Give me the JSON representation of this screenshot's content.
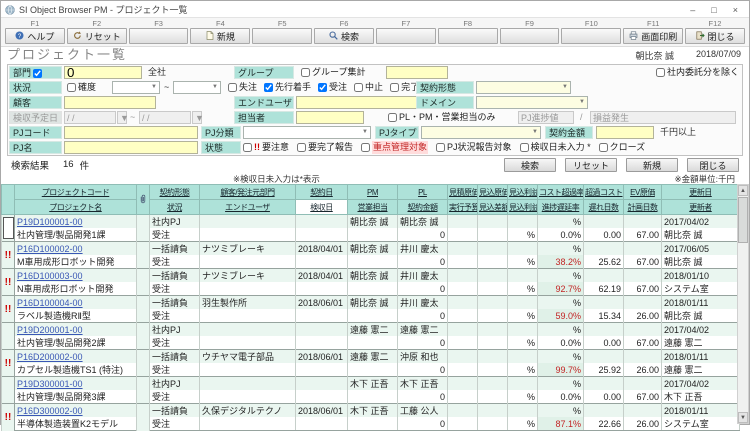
{
  "window": {
    "app_title": "SI Object Browser PM - プロジェクト一覧",
    "user": "朝比奈 誠",
    "date": "2018/07/09"
  },
  "page": {
    "title": "プロジェクト一覧"
  },
  "icons": {
    "minimize": "–",
    "maximize": "□",
    "close_win": "×",
    "dropdown": "▼",
    "up_arrow": "▲",
    "down_arrow": "▼",
    "alert": "!!",
    "attachment": "paperclip"
  },
  "fkeys": [
    {
      "key": "F1",
      "label": "ヘルプ",
      "icon": "help"
    },
    {
      "key": "F2",
      "label": "リセット",
      "icon": "reset"
    },
    {
      "key": "F3",
      "label": "",
      "icon": ""
    },
    {
      "key": "F4",
      "label": "新規",
      "icon": "new"
    },
    {
      "key": "F5",
      "label": "",
      "icon": ""
    },
    {
      "key": "F6",
      "label": "検索",
      "icon": "search"
    },
    {
      "key": "F7",
      "label": "",
      "icon": ""
    },
    {
      "key": "F8",
      "label": "",
      "icon": ""
    },
    {
      "key": "F9",
      "label": "",
      "icon": ""
    },
    {
      "key": "F10",
      "label": "",
      "icon": ""
    },
    {
      "key": "F11",
      "label": "画面印刷",
      "icon": "print"
    },
    {
      "key": "F12",
      "label": "閉じる",
      "icon": "close"
    }
  ],
  "filter": {
    "bumon_label": "部門",
    "bumon_checked": true,
    "bumon_value": "0",
    "bumon_text": "全社",
    "group_label": "グループ",
    "group_sum_label": "グループ集計",
    "group_sum_checked": false,
    "group_value": "",
    "exclude_label": "社内委託分を除く",
    "exclude_checked": false,
    "jokyo_label": "状況",
    "kakudo_label": "確度",
    "kakudo_checked": false,
    "tilde": "~",
    "status_options": [
      {
        "label": "失注",
        "checked": false
      },
      {
        "label": "先行着手",
        "checked": true
      },
      {
        "label": "受注",
        "checked": true
      },
      {
        "label": "中止",
        "checked": false
      },
      {
        "label": "完了",
        "checked": false
      }
    ],
    "keiyaku_keitai_label": "契約形態",
    "kokyaku_label": "顧客",
    "kokyaku_value": "",
    "enduser_label": "エンドユーザ",
    "enduser_value": "",
    "domain_label": "ドメイン",
    "kenshu_yotei_label": "検収予定日",
    "date_placeholder": "/  /",
    "tanto_label": "担当者",
    "tanto_value": "",
    "plpm_label": "PL・PM・営業担当のみ",
    "plpm_checked": false,
    "pj_shinchoku_label": "PJ進捗値",
    "slash": "/",
    "soneki_label": "損益発生",
    "pjcode_label": "PJコード",
    "pjcode_value": "",
    "pjbunrui_label": "PJ分類",
    "pjtype_label": "PJタイプ",
    "kingaku_label": "契約金額",
    "kingaku_value": "",
    "kingaku_unit": "千円以上",
    "pjname_label": "PJ名",
    "pjname_value": "",
    "jotai_label": "状態",
    "jotai_options": [
      {
        "label": "要注意",
        "checked": false,
        "alert": true
      },
      {
        "label": "要完了報告",
        "checked": false
      },
      {
        "label": "重点管理対象",
        "checked": false,
        "red": true
      },
      {
        "label": "PJ状況報告対象",
        "checked": false
      },
      {
        "label": "検収日未入力 *",
        "checked": false
      },
      {
        "label": "クローズ",
        "checked": false
      }
    ]
  },
  "results": {
    "label": "検索結果",
    "count": "16",
    "unit": "件"
  },
  "actions": {
    "search": "検索",
    "reset": "リセット",
    "new": "新規",
    "close": "閉じる"
  },
  "notes": {
    "kenshu": "※検収日未入力は*表示",
    "unit": "※金額単位:千円"
  },
  "table": {
    "headers": {
      "code": [
        "プロジェクトコード",
        "プロジェクト名"
      ],
      "keitai": [
        "契約形態",
        "状況"
      ],
      "customer": [
        "顧客/発注元部門",
        "エンドユーザ"
      ],
      "date": [
        "契約日",
        "検収日"
      ],
      "pm": [
        "PM",
        "営業担当"
      ],
      "pl": [
        "PL",
        "契約金額"
      ],
      "estimate": [
        "見積原価",
        "実行予算"
      ],
      "expect": [
        "見込原価",
        "見込差額"
      ],
      "profit": [
        "見込利益",
        "見込利益率"
      ],
      "costover": [
        "コスト超過率",
        "進捗遅延率"
      ],
      "overcost": [
        "超過コスト",
        "遅れ日数"
      ],
      "ev": [
        "EV原価",
        "計画日数"
      ],
      "update": [
        "更新日",
        "更新者"
      ]
    },
    "rows": [
      {
        "alert": false,
        "cursor": true,
        "code": "P19D100001-00",
        "name": "社内管理/製品開発1課",
        "keitai": "社内PJ",
        "jokyo": "受注",
        "customer": "",
        "enduser": "",
        "keiyakubi": "",
        "kenshubi": "",
        "pm": "朝比奈 誠",
        "eigyo": "",
        "pl": "朝比奈 誠",
        "kingaku": "0",
        "cost_rate": "%",
        "rieki_rate": "%",
        "chien_rate": "0.0%",
        "okure": "0.00",
        "keikaku": "67.00",
        "koshinbi": "2017/04/02",
        "koshinsha": "朝比奈 誠"
      },
      {
        "alert": true,
        "cursor": false,
        "code": "P16D100002-00",
        "name": "M車用成形ロボット開発",
        "keitai": "一括請負",
        "jokyo": "受注",
        "customer": "ナツミブレーキ",
        "enduser": "",
        "keiyakubi": "2018/04/01",
        "kenshubi": "",
        "pm": "朝比奈 誠",
        "eigyo": "",
        "pl": "井川 慶太",
        "kingaku": "0",
        "cost_rate": "%",
        "rieki_rate": "%",
        "chien_rate": "38.2%",
        "okure": "25.62",
        "keikaku": "67.00",
        "koshinbi": "2017/06/05",
        "koshinsha": "朝比奈 誠"
      },
      {
        "alert": true,
        "cursor": false,
        "code": "P16D100003-00",
        "name": "N車用成形ロボット開発",
        "keitai": "一括請負",
        "jokyo": "受注",
        "customer": "ナツミブレーキ",
        "enduser": "",
        "keiyakubi": "2018/04/01",
        "kenshubi": "",
        "pm": "朝比奈 誠",
        "eigyo": "",
        "pl": "井川 慶太",
        "kingaku": "0",
        "cost_rate": "%",
        "rieki_rate": "%",
        "chien_rate": "92.7%",
        "okure": "62.19",
        "keikaku": "67.00",
        "koshinbi": "2018/01/10",
        "koshinsha": "システム室"
      },
      {
        "alert": true,
        "cursor": false,
        "code": "P16D100004-00",
        "name": "ラベル製造機RⅡ型",
        "keitai": "一括請負",
        "jokyo": "受注",
        "customer": "羽生製作所",
        "enduser": "",
        "keiyakubi": "2018/06/01",
        "kenshubi": "",
        "pm": "朝比奈 誠",
        "eigyo": "",
        "pl": "井川 慶太",
        "kingaku": "0",
        "cost_rate": "%",
        "rieki_rate": "%",
        "chien_rate": "59.0%",
        "okure": "15.34",
        "keikaku": "26.00",
        "koshinbi": "2018/01/11",
        "koshinsha": "朝比奈 誠"
      },
      {
        "alert": false,
        "cursor": false,
        "code": "P19D200001-00",
        "name": "社内管理/製品開発2課",
        "keitai": "社内PJ",
        "jokyo": "受注",
        "customer": "",
        "enduser": "",
        "keiyakubi": "",
        "kenshubi": "",
        "pm": "遠藤 憲二",
        "eigyo": "",
        "pl": "遠藤 憲二",
        "kingaku": "0",
        "cost_rate": "%",
        "rieki_rate": "%",
        "chien_rate": "0.0%",
        "okure": "0.00",
        "keikaku": "67.00",
        "koshinbi": "2017/04/02",
        "koshinsha": "遠藤 憲二"
      },
      {
        "alert": true,
        "cursor": false,
        "code": "P16D200002-00",
        "name": "カプセル製造機TS1 (特注)",
        "keitai": "一括請負",
        "jokyo": "受注",
        "customer": "ウチヤマ電子部品",
        "enduser": "",
        "keiyakubi": "2018/06/01",
        "kenshubi": "",
        "pm": "遠藤 憲二",
        "eigyo": "",
        "pl": "沖原 和也",
        "kingaku": "0",
        "cost_rate": "%",
        "rieki_rate": "%",
        "chien_rate": "99.7%",
        "okure": "25.92",
        "keikaku": "26.00",
        "koshinbi": "2018/01/11",
        "koshinsha": "遠藤 憲二"
      },
      {
        "alert": false,
        "cursor": false,
        "code": "P19D300001-00",
        "name": "社内管理/製品開発3課",
        "keitai": "社内PJ",
        "jokyo": "受注",
        "customer": "",
        "enduser": "",
        "keiyakubi": "",
        "kenshubi": "",
        "pm": "木下 正吾",
        "eigyo": "",
        "pl": "木下 正吾",
        "kingaku": "0",
        "cost_rate": "%",
        "rieki_rate": "%",
        "chien_rate": "0.0%",
        "okure": "0.00",
        "keikaku": "67.00",
        "koshinbi": "2017/04/02",
        "koshinsha": "木下 正吾"
      },
      {
        "alert": true,
        "cursor": false,
        "code": "P16D300002-00",
        "name": "半導体製造装置K2モデル",
        "keitai": "一括請負",
        "jokyo": "受注",
        "customer": "久保デジタルテクノ",
        "enduser": "",
        "keiyakubi": "2018/06/01",
        "kenshubi": "",
        "pm": "木下 正吾",
        "eigyo": "",
        "pl": "工藤 公人",
        "kingaku": "0",
        "cost_rate": "%",
        "rieki_rate": "%",
        "chien_rate": "87.1%",
        "okure": "22.66",
        "keikaku": "26.00",
        "koshinbi": "2018/01/11",
        "koshinsha": "システム室"
      }
    ]
  }
}
